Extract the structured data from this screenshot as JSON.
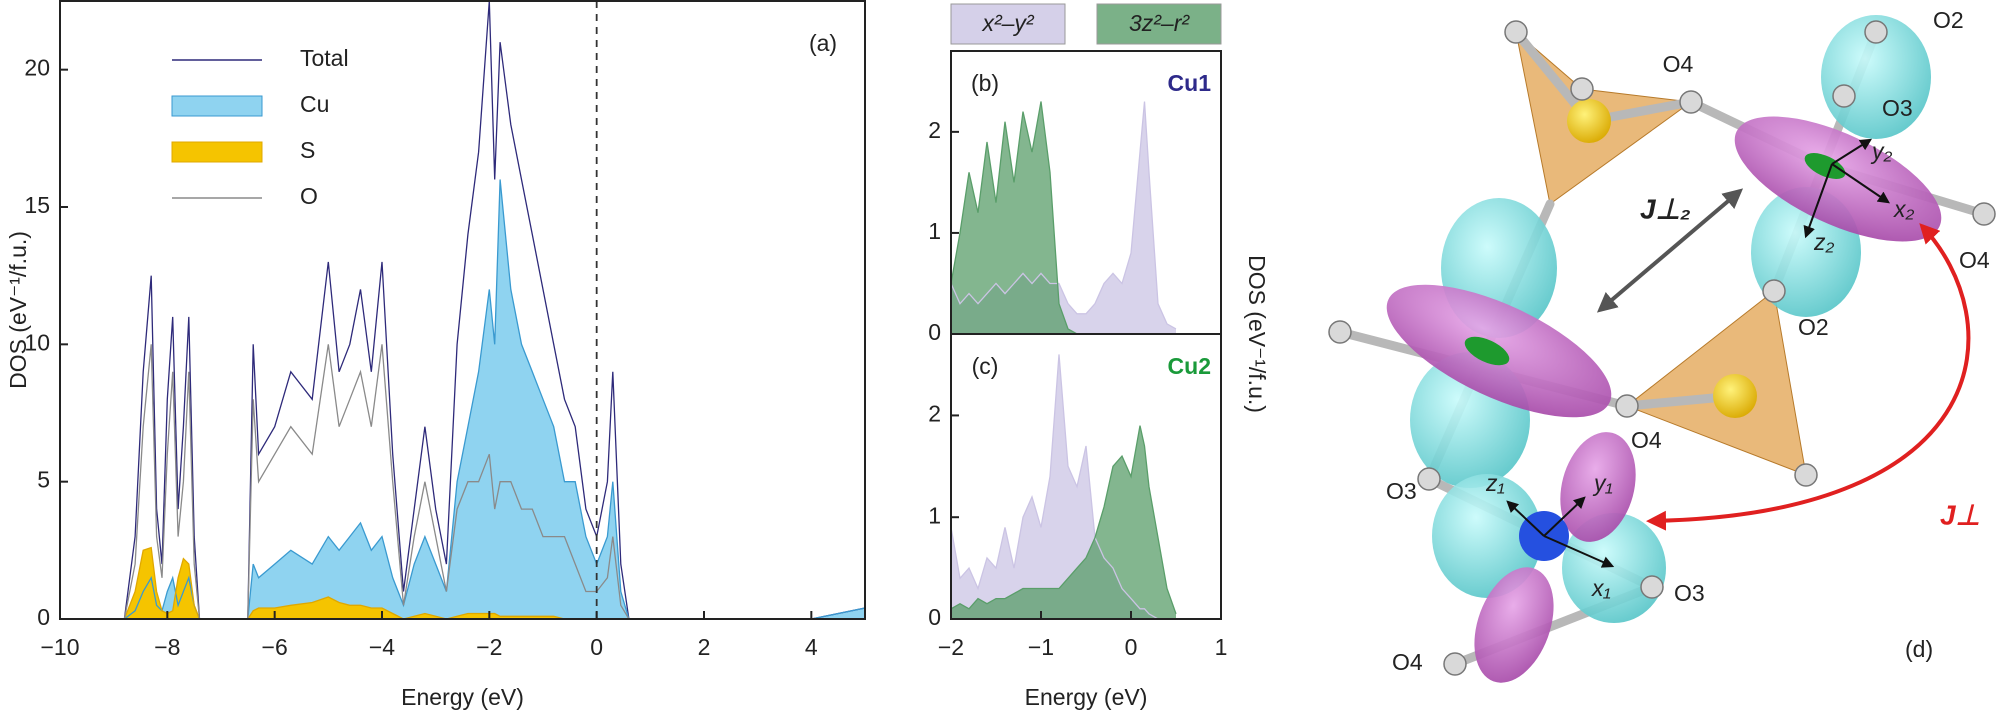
{
  "chart_data": [
    {
      "type": "line",
      "x_label": "Energy (eV)",
      "y_label": "DOS (eV⁻¹/f.u.)",
      "annotation": "(a)",
      "x": [
        -8.8,
        -8.6,
        -8.45,
        -8.3,
        -8.2,
        -8.1,
        -8.0,
        -7.9,
        -7.8,
        -7.7,
        -7.6,
        -7.5,
        -7.4,
        -6.5,
        -6.4,
        -6.3,
        -6.0,
        -5.7,
        -5.3,
        -5.0,
        -4.8,
        -4.6,
        -4.4,
        -4.2,
        -4.0,
        -3.8,
        -3.6,
        -3.4,
        -3.2,
        -3.0,
        -2.8,
        -2.6,
        -2.4,
        -2.2,
        -2.0,
        -1.9,
        -1.8,
        -1.6,
        -1.4,
        -1.2,
        -1.0,
        -0.8,
        -0.6,
        -0.4,
        -0.2,
        0.0,
        0.2,
        0.3,
        0.45,
        0.6,
        3.5,
        4.0,
        4.5,
        5.0
      ],
      "series": [
        {
          "name": "Total",
          "color": "#2e2a7a",
          "values": [
            0,
            3,
            9,
            12.5,
            4,
            2,
            8,
            11,
            4,
            7,
            11,
            3,
            0,
            0,
            10,
            6,
            7,
            9,
            8,
            13,
            9,
            10,
            12,
            9,
            13,
            6,
            1,
            4,
            7,
            4,
            2,
            10,
            14,
            17,
            22.5,
            16,
            21,
            18,
            16,
            14,
            12,
            10,
            8,
            7,
            4,
            3,
            5,
            9,
            2,
            0,
            0,
            0,
            0.2,
            0.4
          ]
        },
        {
          "name": "Cu",
          "color": "#8fd3f0",
          "fill": true,
          "values": [
            0,
            0.3,
            1,
            1.5,
            0.5,
            0.3,
            1,
            1.5,
            0.5,
            1,
            1.5,
            0.5,
            0,
            0,
            2,
            1.5,
            2,
            2.5,
            2,
            3,
            2.5,
            3,
            3.5,
            2.5,
            3,
            1.5,
            0.5,
            2,
            3,
            2,
            1,
            5,
            7,
            9,
            12,
            10,
            16,
            12,
            10,
            9,
            8,
            7,
            5,
            5,
            3,
            2,
            3,
            5,
            1,
            0,
            0,
            0,
            0.2,
            0.4
          ]
        },
        {
          "name": "S",
          "color": "#f5c400",
          "fill": true,
          "values": [
            0,
            1,
            2.5,
            2.6,
            1,
            0.3,
            0.2,
            0.3,
            1.5,
            2.2,
            2,
            0.5,
            0,
            0,
            0.3,
            0.4,
            0.4,
            0.5,
            0.6,
            0.8,
            0.6,
            0.5,
            0.5,
            0.4,
            0.4,
            0.2,
            0,
            0.1,
            0.2,
            0.1,
            0,
            0.1,
            0.2,
            0.2,
            0.2,
            0.2,
            0.1,
            0.1,
            0.1,
            0.1,
            0.1,
            0.1,
            0,
            0,
            0,
            0,
            0,
            0,
            0,
            0,
            0,
            0,
            0,
            0
          ]
        },
        {
          "name": "O",
          "color": "#8a8a8a",
          "values": [
            0,
            2,
            7,
            10,
            3,
            1.5,
            6,
            9,
            3,
            5,
            9,
            2,
            0,
            0,
            8,
            5,
            6,
            7,
            6,
            10,
            7,
            8,
            9,
            7,
            10,
            5,
            0.5,
            3,
            5,
            3,
            1,
            4,
            5,
            5,
            6,
            4,
            5,
            5,
            4,
            4,
            3,
            3,
            3,
            2,
            1,
            1,
            1.5,
            3,
            0.5,
            0,
            0,
            0,
            0,
            0
          ]
        }
      ],
      "xlim": [
        -10,
        5
      ],
      "ylim": [
        0,
        22.5
      ],
      "xticks": [
        {
          "value": -10,
          "label": "−10"
        },
        {
          "value": -8,
          "label": "−8"
        },
        {
          "value": -6,
          "label": "−6"
        },
        {
          "value": -4,
          "label": "−4"
        },
        {
          "value": -2,
          "label": "−2"
        },
        0,
        2,
        4
      ],
      "yticks": [
        0,
        5,
        10,
        15,
        20
      ],
      "vline": 0
    },
    {
      "type": "area",
      "annotation": "(b)",
      "label": "Cu1",
      "label_color": "#2e2a8a",
      "y_label": "DOS (eV⁻¹/f.u.)",
      "x": [
        -2,
        -1.9,
        -1.8,
        -1.7,
        -1.6,
        -1.5,
        -1.4,
        -1.3,
        -1.2,
        -1.1,
        -1.0,
        -0.9,
        -0.8,
        -0.7,
        -0.6,
        -0.5,
        -0.4,
        -0.3,
        -0.2,
        -0.1,
        0,
        0.1,
        0.15,
        0.2,
        0.3,
        0.4,
        0.5
      ],
      "series": [
        {
          "name": "x²–y²",
          "color": "#cbc4e4",
          "values": [
            0.5,
            0.3,
            0.4,
            0.3,
            0.4,
            0.5,
            0.4,
            0.5,
            0.6,
            0.5,
            0.6,
            0.5,
            0.5,
            0.3,
            0.2,
            0.2,
            0.3,
            0.5,
            0.6,
            0.5,
            0.8,
            1.8,
            2.3,
            1.6,
            0.3,
            0.1,
            0.05
          ]
        },
        {
          "name": "3z²–r²",
          "color": "#5a9e6a",
          "values": [
            0.5,
            1.0,
            1.6,
            1.2,
            1.9,
            1.3,
            2.1,
            1.5,
            2.2,
            1.8,
            2.3,
            1.6,
            0.3,
            0.05,
            0,
            0,
            0,
            0,
            0,
            0,
            0,
            0,
            0,
            0,
            0,
            0,
            0
          ]
        }
      ],
      "xlim": [
        -2,
        1
      ],
      "ylim": [
        0,
        2.8
      ],
      "yticks": [
        0,
        1,
        2
      ]
    },
    {
      "type": "area",
      "annotation": "(c)",
      "label": "Cu2",
      "label_color": "#1a9a3a",
      "x_label": "Energy (eV)",
      "x": [
        -2,
        -1.9,
        -1.8,
        -1.7,
        -1.6,
        -1.5,
        -1.4,
        -1.3,
        -1.2,
        -1.1,
        -1.0,
        -0.9,
        -0.8,
        -0.7,
        -0.6,
        -0.5,
        -0.4,
        -0.3,
        -0.2,
        -0.1,
        0,
        0.1,
        0.15,
        0.2,
        0.3,
        0.4,
        0.5
      ],
      "series": [
        {
          "color": "#cbc4e4",
          "values": [
            0.9,
            0.4,
            0.5,
            0.3,
            0.6,
            0.5,
            0.9,
            0.5,
            1.0,
            1.2,
            0.9,
            1.4,
            2.6,
            1.5,
            1.3,
            1.7,
            0.8,
            0.6,
            0.5,
            0.3,
            0.2,
            0.1,
            0.1,
            0.05,
            0,
            0,
            0
          ]
        },
        {
          "color": "#5a9e6a",
          "values": [
            0.1,
            0.15,
            0.1,
            0.2,
            0.15,
            0.2,
            0.2,
            0.25,
            0.3,
            0.3,
            0.3,
            0.3,
            0.3,
            0.4,
            0.5,
            0.6,
            0.8,
            1.1,
            1.5,
            1.6,
            1.4,
            1.9,
            1.7,
            1.3,
            0.8,
            0.3,
            0.05
          ]
        }
      ],
      "xlim": [
        -2,
        1
      ],
      "ylim": [
        0,
        2.8
      ],
      "xticks": [
        {
          "value": -2,
          "label": "−2"
        },
        {
          "value": -1,
          "label": "−1"
        },
        0,
        1
      ],
      "yticks": [
        0,
        1,
        2
      ]
    }
  ],
  "diagram": {
    "labels": [
      "O2",
      "O4",
      "O3",
      "O4",
      "O2",
      "O4",
      "O3",
      "O3",
      "O4",
      "(d)",
      "J⊥₂",
      "J⊥",
      "y₂",
      "x₂",
      "z₂",
      "z₁",
      "y₁",
      "x₁"
    ]
  }
}
